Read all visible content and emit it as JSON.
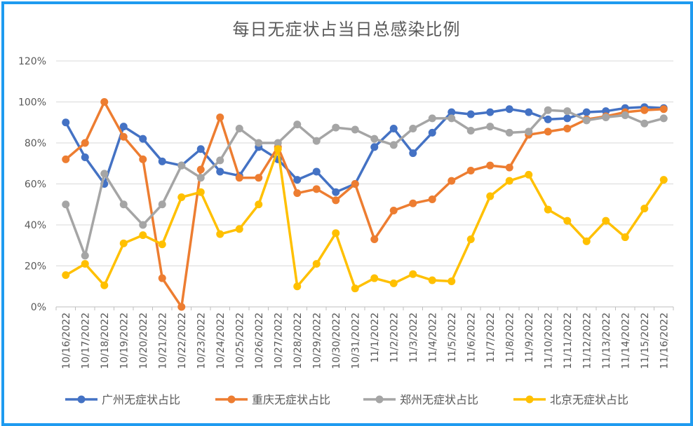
{
  "chart_data": {
    "type": "line",
    "title": "每日无症状占当日总感染比例",
    "xlabel": "",
    "ylabel": "",
    "ylim": [
      0,
      1.2
    ],
    "yticks": [
      "0%",
      "20%",
      "40%",
      "60%",
      "80%",
      "100%",
      "120%"
    ],
    "grid": "horizontal",
    "legend": "bottom",
    "categories": [
      "10/16/2022",
      "10/17/2022",
      "10/18/2022",
      "10/19/2022",
      "10/20/2022",
      "10/21/2022",
      "10/22/2022",
      "10/23/2022",
      "10/24/2022",
      "10/25/2022",
      "10/26/2022",
      "10/27/2022",
      "10/28/2022",
      "10/29/2022",
      "10/30/2022",
      "10/31/2022",
      "11/1/2022",
      "11/2/2022",
      "11/3/2022",
      "11/4/2022",
      "11/5/2022",
      "11/6/2022",
      "11/7/2022",
      "11/8/2022",
      "11/9/2022",
      "11/10/2022",
      "11/11/2022",
      "11/12/2022",
      "11/13/2022",
      "11/14/2022",
      "11/15/2022",
      "11/16/2022"
    ],
    "series": [
      {
        "name": "广州无症状占比",
        "color": "#4472c4",
        "values": [
          0.9,
          0.73,
          0.6,
          0.88,
          0.82,
          0.71,
          0.69,
          0.77,
          0.66,
          0.64,
          0.78,
          0.72,
          0.62,
          0.66,
          0.56,
          0.6,
          0.78,
          0.87,
          0.75,
          0.85,
          0.95,
          0.94,
          0.95,
          0.965,
          0.95,
          0.915,
          0.92,
          0.95,
          0.955,
          0.97,
          0.975,
          0.97
        ]
      },
      {
        "name": "重庆无症状占比",
        "color": "#ed7d31",
        "values": [
          0.72,
          0.8,
          1.0,
          0.83,
          0.72,
          0.14,
          0.0,
          0.67,
          0.925,
          0.63,
          0.63,
          0.78,
          0.555,
          0.575,
          0.52,
          0.6,
          0.33,
          0.47,
          0.505,
          0.525,
          0.615,
          0.665,
          0.69,
          0.68,
          0.84,
          0.855,
          0.87,
          0.915,
          0.93,
          0.95,
          0.96,
          0.965
        ]
      },
      {
        "name": "郑州无症状占比",
        "color": "#a5a5a5",
        "values": [
          0.5,
          0.25,
          0.65,
          0.5,
          0.4,
          0.5,
          0.69,
          0.63,
          0.715,
          0.87,
          0.8,
          0.8,
          0.89,
          0.81,
          0.875,
          0.865,
          0.82,
          0.79,
          0.87,
          0.92,
          0.92,
          0.86,
          0.88,
          0.85,
          0.855,
          0.96,
          0.955,
          0.91,
          0.925,
          0.935,
          0.895,
          0.92
        ]
      },
      {
        "name": "北京无症状占比",
        "color": "#ffc000",
        "values": [
          0.155,
          0.21,
          0.105,
          0.31,
          0.35,
          0.305,
          0.535,
          0.56,
          0.355,
          0.38,
          0.5,
          0.77,
          0.1,
          0.21,
          0.36,
          0.09,
          0.14,
          0.115,
          0.16,
          0.13,
          0.125,
          0.33,
          0.54,
          0.615,
          0.645,
          0.475,
          0.42,
          0.32,
          0.42,
          0.34,
          0.48,
          0.62
        ]
      }
    ]
  }
}
